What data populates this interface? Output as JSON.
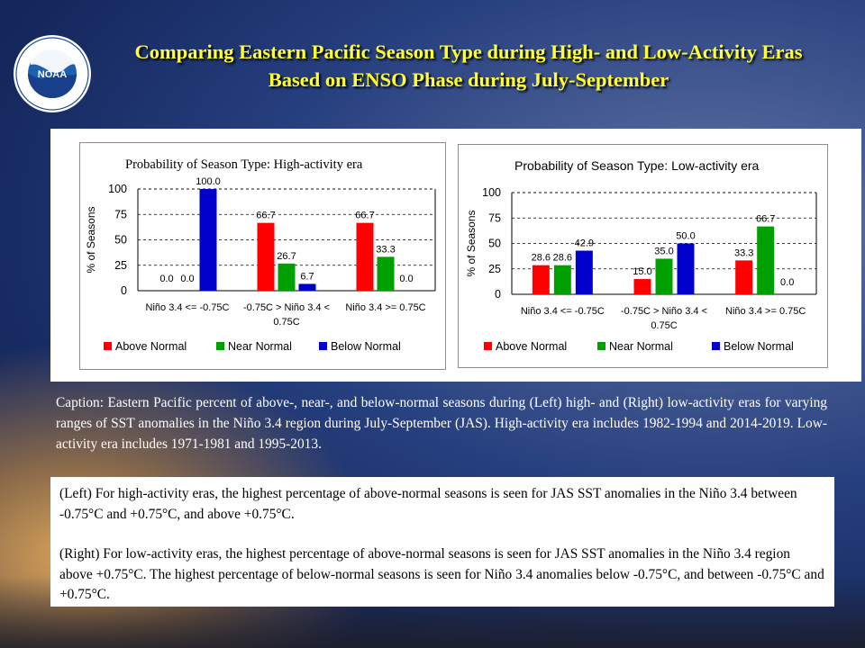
{
  "logo": {
    "text": "NOAA",
    "ring_text": "NATIONAL OCEANIC AND ATMOSPHERIC ADMINISTRATION · U.S. DEPARTMENT OF COMMERCE"
  },
  "title": "Comparing Eastern Pacific Season Type during High- and Low-Activity Eras Based on ENSO Phase during July-September",
  "chart_data": [
    {
      "type": "bar",
      "title": "Probability of Season Type: High-activity  era",
      "ylabel": "% of Seasons",
      "xlabel": "",
      "ylim": [
        0,
        100
      ],
      "yticks": [
        0,
        25,
        50,
        75,
        100
      ],
      "grid": true,
      "legend_position": "bottom",
      "categories": [
        [
          "Niño 3.4 <= -0.75C"
        ],
        [
          "-0.75C > Niño 3.4 <",
          "0.75C"
        ],
        [
          "Niño 3.4 >=  0.75C"
        ]
      ],
      "series": [
        {
          "name": "Above Normal",
          "color": "#ff0000",
          "values": [
            0.0,
            66.7,
            66.7
          ],
          "labels": [
            "0.0",
            "66.7",
            "66.7"
          ]
        },
        {
          "name": "Near Normal",
          "color": "#00a000",
          "values": [
            0.0,
            26.7,
            33.3
          ],
          "labels": [
            "0.0",
            "26.7",
            "33.3"
          ]
        },
        {
          "name": "Below Normal",
          "color": "#0000cc",
          "values": [
            100.0,
            6.7,
            0.0
          ],
          "labels": [
            "100.0",
            "6.7",
            "0.0"
          ]
        }
      ]
    },
    {
      "type": "bar",
      "title": "Probability of Season Type: Low-activity era",
      "ylabel": "% of Seasons",
      "xlabel": "",
      "ylim": [
        0,
        100
      ],
      "yticks": [
        0,
        25,
        50,
        75,
        100
      ],
      "grid": true,
      "legend_position": "bottom",
      "categories": [
        [
          "Niño 3.4 <= -0.75C"
        ],
        [
          "-0.75C > Niño 3.4 <",
          "0.75C"
        ],
        [
          "Niño 3.4 >=  0.75C"
        ]
      ],
      "series": [
        {
          "name": "Above Normal",
          "color": "#ff0000",
          "values": [
            28.6,
            15.0,
            33.3
          ],
          "labels": [
            "28.6",
            "15.0",
            "33.3"
          ]
        },
        {
          "name": "Near Normal",
          "color": "#00a000",
          "values": [
            28.6,
            35.0,
            66.7
          ],
          "labels": [
            "28.6",
            "35.0",
            "66.7"
          ]
        },
        {
          "name": "Below Normal",
          "color": "#0000cc",
          "values": [
            42.9,
            50.0,
            0.0
          ],
          "labels": [
            "42.9",
            "50.0",
            "0.0"
          ]
        }
      ]
    }
  ],
  "caption": "Caption: Eastern Pacific percent of above-, near-, and below-normal seasons during (Left) high- and (Right) low-activity eras for varying ranges of SST anomalies in the Niño 3.4 region during July-September (JAS). High-activity era includes 1982-1994  and 2014-2019.  Low-activity era includes 1971-1981 and 1995-2013.",
  "notes": [
    "(Left) For high-activity  eras, the highest percentage of above-normal seasons is seen for JAS SST anomalies in the Niño 3.4 between -0.75°C and +0.75°C, and above +0.75°C.",
    "(Right) For low-activity  eras, the highest percentage of above-normal seasons is seen for JAS SST anomalies in the Niño 3.4 region above +0.75°C. The highest percentage of below-normal  seasons is seen for Niño 3.4 anomalies below -0.75°C, and between -0.75°C and +0.75°C."
  ]
}
